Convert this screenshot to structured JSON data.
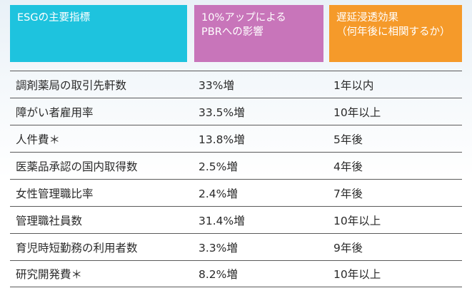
{
  "table": {
    "headers": [
      {
        "text": "ESGの主要指標",
        "color": "#1ec3de"
      },
      {
        "text": "10%アップによる\nPBRへの影響",
        "color": "#c875ba"
      },
      {
        "text": "遅延浸透効果\n（何年後に相関するか）",
        "color": "#f59a2a"
      }
    ],
    "rows": [
      {
        "indicator": "調剤薬局の取引先軒数",
        "pbr": "33%増",
        "delay": "1年以内"
      },
      {
        "indicator": "障がい者雇用率",
        "pbr": "33.5%増",
        "delay": "10年以上"
      },
      {
        "indicator": "人件費＊",
        "pbr": "13.8%増",
        "delay": "5年後"
      },
      {
        "indicator": "医薬品承認の国内取得数",
        "pbr": "2.5%増",
        "delay": "4年後"
      },
      {
        "indicator": "女性管理職比率",
        "pbr": "2.4%増",
        "delay": "7年後"
      },
      {
        "indicator": "管理職社員数",
        "pbr": "31.4%増",
        "delay": "10年以上"
      },
      {
        "indicator": "育児時短勤務の利用者数",
        "pbr": "3.3%増",
        "delay": "9年後"
      },
      {
        "indicator": "研究開発費＊",
        "pbr": "8.2%増",
        "delay": "10年以上"
      }
    ]
  }
}
